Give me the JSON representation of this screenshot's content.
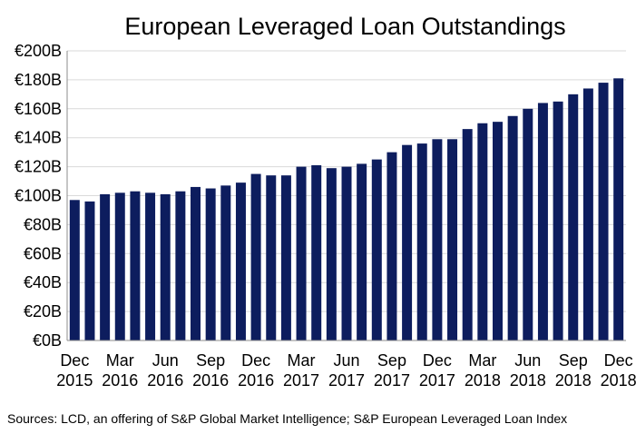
{
  "chart_data": {
    "type": "bar",
    "title": "European Leveraged Loan Outstandings",
    "source": "Sources: LCD, an offering of S&P Global Market Intelligence; S&P European Leveraged Loan Index",
    "ylim": [
      0,
      200
    ],
    "yticks": [
      "€0B",
      "€20B",
      "€40B",
      "€60B",
      "€80B",
      "€100B",
      "€120B",
      "€140B",
      "€160B",
      "€180B",
      "€200B"
    ],
    "grid": true,
    "bar_color": "#0d1d5e",
    "categories": [
      "Dec 2015",
      "Jan 2016",
      "Feb 2016",
      "Mar 2016",
      "Apr 2016",
      "May 2016",
      "Jun 2016",
      "Jul 2016",
      "Aug 2016",
      "Sep 2016",
      "Oct 2016",
      "Nov 2016",
      "Dec 2016",
      "Jan 2017",
      "Feb 2017",
      "Mar 2017",
      "Apr 2017",
      "May 2017",
      "Jun 2017",
      "Jul 2017",
      "Aug 2017",
      "Sep 2017",
      "Oct 2017",
      "Nov 2017",
      "Dec 2017",
      "Jan 2018",
      "Feb 2018",
      "Mar 2018",
      "Apr 2018",
      "May 2018",
      "Jun 2018",
      "Jul 2018",
      "Aug 2018",
      "Sep 2018",
      "Oct 2018",
      "Nov 2018",
      "Dec 2018"
    ],
    "values": [
      97,
      96,
      101,
      102,
      103,
      102,
      101,
      103,
      106,
      105,
      107,
      109,
      115,
      114,
      114,
      120,
      121,
      119,
      120,
      122,
      125,
      130,
      135,
      136,
      139,
      139,
      146,
      150,
      151,
      155,
      160,
      164,
      165,
      170,
      174,
      178,
      181
    ],
    "xtick_labels": [
      {
        "index": 0,
        "line1": "Dec",
        "line2": "2015"
      },
      {
        "index": 3,
        "line1": "Mar",
        "line2": "2016"
      },
      {
        "index": 6,
        "line1": "Jun",
        "line2": "2016"
      },
      {
        "index": 9,
        "line1": "Sep",
        "line2": "2016"
      },
      {
        "index": 12,
        "line1": "Dec",
        "line2": "2016"
      },
      {
        "index": 15,
        "line1": "Mar",
        "line2": "2017"
      },
      {
        "index": 18,
        "line1": "Jun",
        "line2": "2017"
      },
      {
        "index": 21,
        "line1": "Sep",
        "line2": "2017"
      },
      {
        "index": 24,
        "line1": "Dec",
        "line2": "2017"
      },
      {
        "index": 27,
        "line1": "Mar",
        "line2": "2018"
      },
      {
        "index": 30,
        "line1": "Jun",
        "line2": "2018"
      },
      {
        "index": 33,
        "line1": "Sep",
        "line2": "2018"
      },
      {
        "index": 36,
        "line1": "Dec",
        "line2": "2018"
      }
    ]
  }
}
